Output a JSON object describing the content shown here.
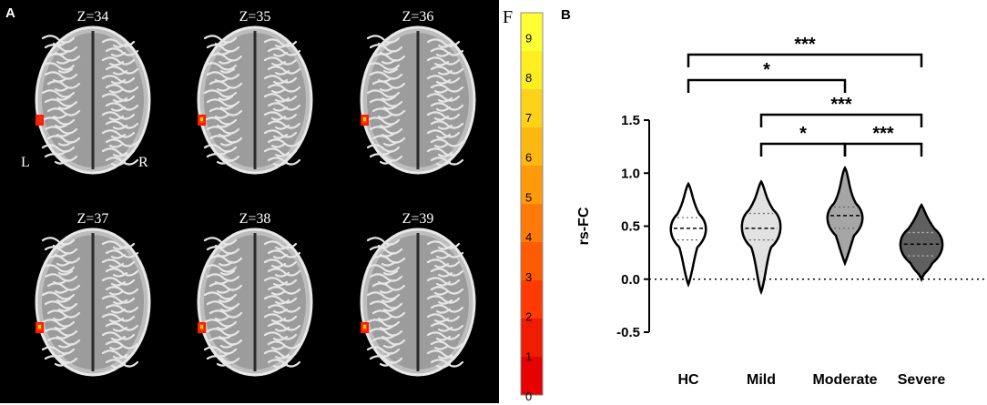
{
  "panel_a": {
    "letter": "A",
    "slices": [
      {
        "label": "Z=34",
        "blob_color": "#e83010"
      },
      {
        "label": "Z=35",
        "blob_color": "#f04a10"
      },
      {
        "label": "Z=36",
        "blob_color": "#f04a10"
      },
      {
        "label": "Z=37",
        "blob_color": "#f04a10"
      },
      {
        "label": "Z=38",
        "blob_color": "#f04a10"
      },
      {
        "label": "Z=39",
        "blob_color": "#f04a10"
      }
    ],
    "left_label": "L",
    "right_label": "R",
    "colorbar": {
      "title": "F",
      "ticks": [
        "9",
        "8",
        "7",
        "6",
        "5",
        "4",
        "3",
        "2",
        "1",
        "0"
      ],
      "colors": [
        "#ffff33",
        "#ffee22",
        "#ffd21a",
        "#ffb812",
        "#ff9a0a",
        "#ff7a08",
        "#ff5a04",
        "#ff3a02",
        "#f01c00",
        "#e60000"
      ]
    }
  },
  "panel_b": {
    "letter": "B",
    "chart_data": {
      "type": "violin",
      "categories": [
        "HC",
        "Mild",
        "Moderate",
        "Severe"
      ],
      "ylabel": "rs-FC",
      "ylim": [
        -0.5,
        1.5
      ],
      "yticks": [
        "1.5",
        "1.0",
        "0.5",
        "0.0",
        "-0.5"
      ],
      "series": [
        {
          "category": "HC",
          "min": -0.05,
          "max": 0.9,
          "q1": 0.37,
          "median": 0.48,
          "q3": 0.58,
          "fill": "#ffffff"
        },
        {
          "category": "Mild",
          "min": -0.12,
          "max": 0.92,
          "q1": 0.37,
          "median": 0.48,
          "q3": 0.62,
          "fill": "#e2e2e2"
        },
        {
          "category": "Moderate",
          "min": 0.15,
          "max": 1.05,
          "q1": 0.48,
          "median": 0.6,
          "q3": 0.68,
          "fill": "#a6a6a6"
        },
        {
          "category": "Severe",
          "min": 0.0,
          "max": 0.7,
          "q1": 0.22,
          "median": 0.33,
          "q3": 0.44,
          "fill": "#606060"
        }
      ],
      "reference_line": 0.0,
      "significance": [
        {
          "from": "HC",
          "to": "Severe",
          "label": "***"
        },
        {
          "from": "HC",
          "to": "Moderate",
          "label": "*"
        },
        {
          "from": "Mild",
          "to": "Severe",
          "label": "***"
        },
        {
          "from": "Mild",
          "to": "Moderate",
          "label": "*"
        },
        {
          "from": "Moderate",
          "to": "Severe",
          "label": "***"
        }
      ]
    }
  }
}
